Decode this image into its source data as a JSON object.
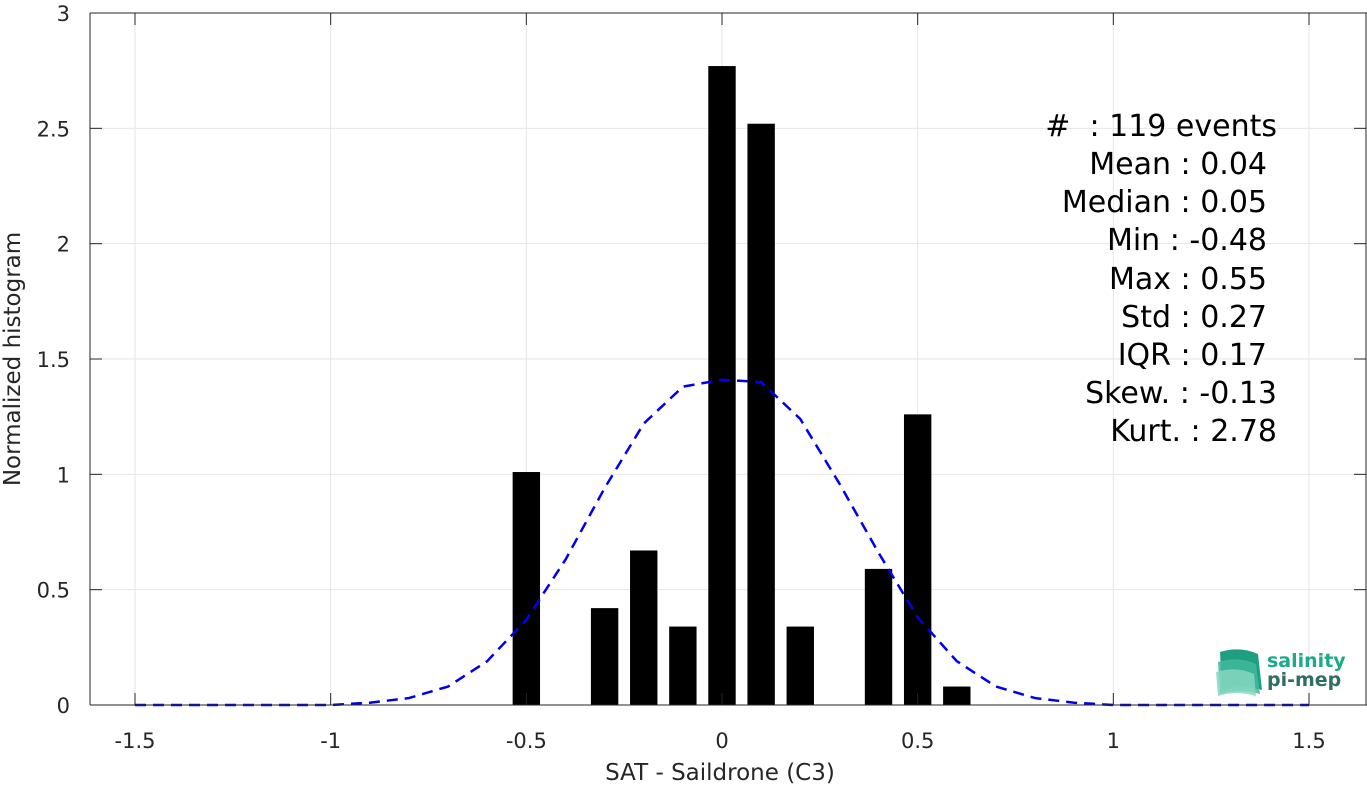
{
  "chart_data": {
    "type": "bar",
    "xlabel": "SAT - Saildrone (C3)",
    "ylabel": "Normalized histogram",
    "xlim": [
      -1.5,
      1.5
    ],
    "ylim": [
      0,
      3
    ],
    "xticks": [
      -1.5,
      -1,
      -0.5,
      0,
      0.5,
      1,
      1.5
    ],
    "xtick_labels": [
      "-1.5",
      "-1",
      "-0.5",
      "0",
      "0.5",
      "1",
      "1.5"
    ],
    "yticks": [
      0,
      0.5,
      1,
      1.5,
      2,
      2.5,
      3
    ],
    "ytick_labels": [
      "0",
      "0.5",
      "1",
      "1.5",
      "2",
      "2.5",
      "3"
    ],
    "grid": true,
    "bar_color": "#000000",
    "bar_width": 0.07,
    "bars": [
      {
        "x": -0.5,
        "value": 1.01
      },
      {
        "x": -0.3,
        "value": 0.42
      },
      {
        "x": -0.2,
        "value": 0.67
      },
      {
        "x": -0.1,
        "value": 0.34
      },
      {
        "x": 0.0,
        "value": 2.77
      },
      {
        "x": 0.1,
        "value": 2.52
      },
      {
        "x": 0.2,
        "value": 0.34
      },
      {
        "x": 0.4,
        "value": 0.59
      },
      {
        "x": 0.5,
        "value": 1.26
      },
      {
        "x": 0.6,
        "value": 0.08
      }
    ],
    "fit_curve": {
      "color": "#0000ee",
      "style": "dashed",
      "x": [
        -1.5,
        -1.4,
        -1.3,
        -1.2,
        -1.1,
        -1.0,
        -0.9,
        -0.8,
        -0.7,
        -0.6,
        -0.5,
        -0.4,
        -0.3,
        -0.2,
        -0.1,
        0.0,
        0.1,
        0.2,
        0.3,
        0.4,
        0.5,
        0.6,
        0.7,
        0.8,
        0.9,
        1.0,
        1.1,
        1.2,
        1.3,
        1.4,
        1.5
      ],
      "y": [
        0.0,
        0.0,
        0.0,
        0.0,
        0.0,
        0.0,
        0.01,
        0.03,
        0.08,
        0.19,
        0.37,
        0.63,
        0.94,
        1.22,
        1.38,
        1.41,
        1.4,
        1.24,
        0.96,
        0.66,
        0.38,
        0.19,
        0.08,
        0.03,
        0.01,
        0.0,
        0.0,
        0.0,
        0.0,
        0.0,
        0.0
      ]
    },
    "stats": [
      "#  : 119 events",
      "Mean : 0.04",
      "Median : 0.05",
      "Min : -0.48",
      "Max : 0.55",
      "Std : 0.27",
      "IQR : 0.17",
      "Skew. : -0.13",
      "Kurt. : 2.78"
    ]
  },
  "logo": {
    "line1": "salinity",
    "line2": "pi-mep",
    "color1": "#1fa98c",
    "color2": "#2f6f62"
  }
}
